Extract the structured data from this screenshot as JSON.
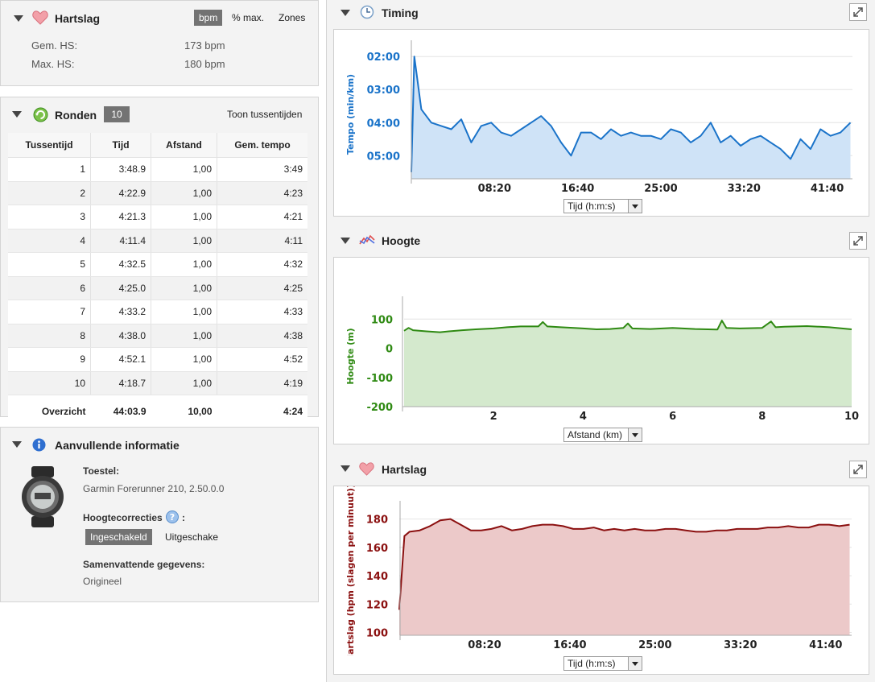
{
  "hartslag_panel": {
    "title": "Hartslag",
    "toggle": [
      "bpm",
      "% max.",
      "Zones"
    ],
    "rows": [
      {
        "label": "Gem. HS:",
        "value": "173 bpm"
      },
      {
        "label": "Max. HS:",
        "value": "180 bpm"
      }
    ]
  },
  "ronden_panel": {
    "title": "Ronden",
    "count": "10",
    "toggle_link": "Toon tussentijden",
    "columns": [
      "Tussentijd",
      "Tijd",
      "Afstand",
      "Gem. tempo"
    ],
    "rows": [
      [
        "1",
        "3:48.9",
        "1,00",
        "3:49"
      ],
      [
        "2",
        "4:22.9",
        "1,00",
        "4:23"
      ],
      [
        "3",
        "4:21.3",
        "1,00",
        "4:21"
      ],
      [
        "4",
        "4:11.4",
        "1,00",
        "4:11"
      ],
      [
        "5",
        "4:32.5",
        "1,00",
        "4:32"
      ],
      [
        "6",
        "4:25.0",
        "1,00",
        "4:25"
      ],
      [
        "7",
        "4:33.2",
        "1,00",
        "4:33"
      ],
      [
        "8",
        "4:38.0",
        "1,00",
        "4:38"
      ],
      [
        "9",
        "4:52.1",
        "1,00",
        "4:52"
      ],
      [
        "10",
        "4:18.7",
        "1,00",
        "4:19"
      ]
    ],
    "summary": [
      "Overzicht",
      "44:03.9",
      "10,00",
      "4:24"
    ]
  },
  "info_panel": {
    "title": "Aanvullende informatie",
    "device_label": "Toestel:",
    "device_value": "Garmin Forerunner 210, 2.50.0.0",
    "elev_label": "Hoogtecorrecties",
    "elev_colon": ":",
    "elev_on": "Ingeschakeld",
    "elev_off": "Uitgeschake",
    "summary_label": "Samenvattende gegevens:",
    "summary_value": "Origineel"
  },
  "charts": {
    "timing": {
      "title": "Timing",
      "select": "Tijd (h:m:s)"
    },
    "hoogte": {
      "title": "Hoogte",
      "select": "Afstand (km)"
    },
    "hartslag": {
      "title": "Hartslag",
      "select": "Tijd (h:m:s)"
    }
  },
  "chart_data": [
    {
      "type": "area",
      "title": "Timing",
      "ylabel": "Tempo (min/km)",
      "xlabel": "Tijd (h:m:s)",
      "x_ticks": [
        "08:20",
        "16:40",
        "25:00",
        "33:20",
        "41:40"
      ],
      "y_ticks": [
        "02:00",
        "03:00",
        "04:00",
        "05:00"
      ],
      "color": "#1a73c9",
      "fill": "#cfe3f7",
      "x": [
        0,
        0.3,
        1,
        2,
        3,
        4,
        5,
        6,
        7,
        8,
        9,
        10,
        11,
        12,
        13,
        14,
        15,
        16,
        17,
        18,
        19,
        20,
        21,
        22,
        23,
        24,
        25,
        26,
        27,
        28,
        29,
        30,
        31,
        32,
        33,
        34,
        35,
        36,
        37,
        38,
        39,
        40,
        41,
        42,
        43,
        44
      ],
      "values": [
        5.5,
        2.0,
        3.6,
        4.0,
        4.1,
        4.2,
        3.9,
        4.6,
        4.1,
        4.0,
        4.3,
        4.4,
        4.2,
        4.0,
        3.8,
        4.1,
        4.6,
        5.0,
        4.3,
        4.3,
        4.5,
        4.2,
        4.4,
        4.3,
        4.4,
        4.4,
        4.5,
        4.2,
        4.3,
        4.6,
        4.4,
        4.0,
        4.6,
        4.4,
        4.7,
        4.5,
        4.4,
        4.6,
        4.8,
        5.1,
        4.5,
        4.8,
        4.2,
        4.4,
        4.3,
        4.0
      ],
      "ylim": [
        1.8,
        5.7
      ],
      "xlim": [
        0,
        44.2
      ],
      "y_inverted": true
    },
    {
      "type": "area",
      "title": "Hoogte",
      "ylabel": "Hoogte (m)",
      "xlabel": "Afstand (km)",
      "x_ticks": [
        "2",
        "4",
        "6",
        "8",
        "10"
      ],
      "y_ticks": [
        "100",
        "0",
        "-100",
        "-200"
      ],
      "color": "#2f8a13",
      "fill": "#d4e9cd",
      "x": [
        0,
        0.1,
        0.2,
        0.5,
        0.8,
        1.0,
        1.3,
        1.6,
        2.0,
        2.3,
        2.6,
        3.0,
        3.1,
        3.2,
        3.5,
        3.8,
        4.0,
        4.3,
        4.6,
        4.9,
        5.0,
        5.1,
        5.5,
        6.0,
        6.5,
        7.0,
        7.1,
        7.2,
        7.5,
        8.0,
        8.2,
        8.3,
        8.5,
        9.0,
        9.5,
        10.0
      ],
      "values": [
        60,
        70,
        62,
        58,
        55,
        58,
        62,
        65,
        68,
        72,
        75,
        75,
        90,
        75,
        72,
        70,
        68,
        65,
        66,
        70,
        85,
        68,
        66,
        70,
        66,
        64,
        95,
        70,
        68,
        70,
        92,
        72,
        74,
        76,
        72,
        65
      ],
      "ylim": [
        -200,
        145
      ],
      "xlim": [
        0,
        10
      ]
    },
    {
      "type": "area",
      "title": "Hartslag",
      "ylabel": "Hartslag (hpm (slagen per minuut))",
      "xlabel": "Tijd (h:m:s)",
      "x_ticks": [
        "08:20",
        "16:40",
        "25:00",
        "33:20",
        "41:40"
      ],
      "y_ticks": [
        "180",
        "160",
        "140",
        "120",
        "100"
      ],
      "color": "#8b1010",
      "fill": "#ecc9c9",
      "x": [
        0,
        0.5,
        1,
        2,
        3,
        4,
        5,
        6,
        7,
        8,
        9,
        10,
        11,
        12,
        13,
        14,
        15,
        16,
        17,
        18,
        19,
        20,
        21,
        22,
        23,
        24,
        25,
        26,
        27,
        28,
        29,
        30,
        31,
        32,
        33,
        34,
        35,
        36,
        37,
        38,
        39,
        40,
        41,
        42,
        43,
        44
      ],
      "values": [
        116,
        168,
        171,
        172,
        175,
        179,
        180,
        176,
        172,
        172,
        173,
        175,
        172,
        173,
        175,
        176,
        176,
        175,
        173,
        173,
        174,
        172,
        173,
        172,
        173,
        172,
        172,
        173,
        173,
        172,
        171,
        171,
        172,
        172,
        173,
        173,
        173,
        174,
        174,
        175,
        174,
        174,
        176,
        176,
        175,
        176
      ],
      "ylim": [
        98,
        186
      ],
      "xlim": [
        0,
        44.2
      ]
    }
  ]
}
